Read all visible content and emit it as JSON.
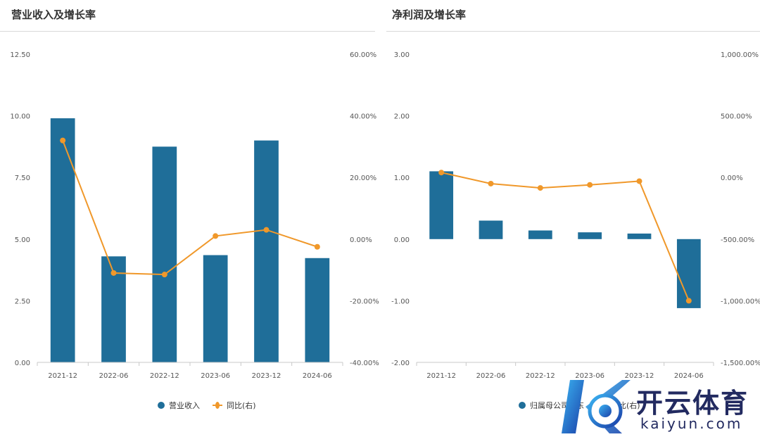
{
  "charts": [
    {
      "title": "营业收入及增长率",
      "legend": {
        "bar_label": "营业收入",
        "line_label": "同比(右)"
      },
      "left_ticks": [
        "12.50",
        "10.00",
        "7.50",
        "5.00",
        "2.50",
        "0.00"
      ],
      "right_ticks": [
        "60.00%",
        "40.00%",
        "20.00%",
        "0.00%",
        "-20.00%",
        "-40.00%"
      ]
    },
    {
      "title": "净利润及增长率",
      "legend": {
        "bar_label": "归属母公司股东",
        "line_label": "同比(右)"
      },
      "left_ticks": [
        "3.00",
        "2.00",
        "1.00",
        "0.00",
        "-1.00",
        "-2.00"
      ],
      "right_ticks": [
        "1,000.00%",
        "500.00%",
        "0.00%",
        "-500.00%",
        "-1,000.00%",
        "-1,500.00%"
      ]
    }
  ],
  "chart_data": [
    {
      "type": "bar",
      "title": "营业收入及增长率",
      "categories": [
        "2021-12",
        "2022-06",
        "2022-12",
        "2023-06",
        "2023-12",
        "2024-06"
      ],
      "series": [
        {
          "name": "营业收入",
          "axis": "left",
          "type": "bar",
          "values": [
            9.9,
            4.3,
            8.75,
            4.35,
            9.0,
            4.23
          ]
        },
        {
          "name": "同比(右)",
          "axis": "right",
          "type": "line",
          "values": [
            32.0,
            -11.0,
            -11.5,
            1.0,
            3.0,
            -2.5
          ]
        }
      ],
      "ylim": [
        0,
        12.5
      ],
      "y2lim": [
        -40,
        60
      ],
      "grid": false,
      "legend_position": "bottom"
    },
    {
      "type": "bar",
      "title": "净利润及增长率",
      "categories": [
        "2021-12",
        "2022-06",
        "2022-12",
        "2023-06",
        "2023-12",
        "2024-06"
      ],
      "series": [
        {
          "name": "归属母公司股东",
          "axis": "left",
          "type": "bar",
          "values": [
            1.1,
            0.3,
            0.14,
            0.11,
            0.09,
            -1.12
          ]
        },
        {
          "name": "同比(右)",
          "axis": "right",
          "type": "line",
          "values": [
            40.0,
            -50.0,
            -85.0,
            -60.0,
            -30.0,
            -1000.0
          ]
        }
      ],
      "ylim": [
        -2,
        3
      ],
      "y2lim": [
        -1500,
        1000
      ],
      "grid": false,
      "legend_position": "bottom"
    }
  ],
  "watermark": {
    "title": "开云体育",
    "subtitle": "kaiyun.com"
  },
  "colors": {
    "bar": "#1f6e99",
    "line": "#f0982a",
    "axis": "#c8c8c8",
    "tick_text": "#555555"
  }
}
